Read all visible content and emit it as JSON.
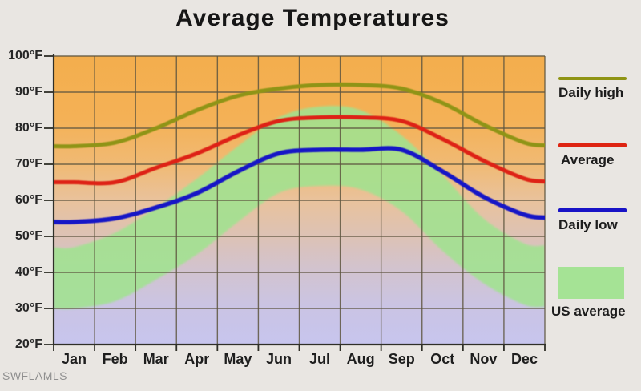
{
  "page": {
    "watermark": "SWFLAMLS"
  },
  "chart_data": {
    "type": "line",
    "title": "Average Temperatures",
    "categories": [
      "Jan",
      "Feb",
      "Mar",
      "Apr",
      "May",
      "Jun",
      "Jul",
      "Aug",
      "Sep",
      "Oct",
      "Nov",
      "Dec"
    ],
    "y_tick_labels": [
      "100°F",
      "90°F",
      "80°F",
      "70°F",
      "60°F",
      "50°F",
      "40°F",
      "30°F",
      "20°F"
    ],
    "y_tick_values": [
      100,
      90,
      80,
      70,
      60,
      50,
      40,
      30,
      20
    ],
    "ylim": [
      20,
      100
    ],
    "grid": true,
    "legend_position": "right",
    "series": [
      {
        "name": "Daily high",
        "color": "#8f9414",
        "values": [
          75,
          76,
          80,
          85,
          89,
          91,
          92,
          92,
          91,
          87,
          81,
          76
        ]
      },
      {
        "name": "Average",
        "color": "#de2412",
        "values": [
          65,
          65,
          69,
          73,
          78,
          82,
          83,
          83,
          82,
          77,
          71,
          66
        ]
      },
      {
        "name": "Daily low",
        "color": "#1813c6",
        "values": [
          54,
          55,
          58,
          62,
          68,
          73,
          74,
          74,
          74,
          68,
          61,
          56
        ]
      }
    ],
    "us_average_band": {
      "name": "US average",
      "color": "#a0e290",
      "high": [
        47,
        51,
        58,
        66,
        75,
        83,
        86,
        85,
        78,
        67,
        55,
        48
      ],
      "low": [
        30,
        32,
        38,
        45,
        54,
        62,
        64,
        63,
        57,
        46,
        37,
        31
      ]
    },
    "legend": [
      {
        "label": "Daily high",
        "swatch": "line",
        "color": "#8f9414"
      },
      {
        "label": "Average",
        "swatch": "line",
        "color": "#de2412"
      },
      {
        "label": "Daily low",
        "swatch": "line",
        "color": "#1813c6"
      },
      {
        "label": "US average",
        "swatch": "area",
        "color": "#a5e395"
      }
    ],
    "colors": {
      "plot_bg_top": "#f3ae4d",
      "plot_bg_orange": "#f4b156",
      "plot_bg_tan": "#e9c29c",
      "plot_bg_pink": "#d2c3cf",
      "plot_bg_lavender": "#c7c5ee",
      "gridline": "#5e5640",
      "axis": "#2f2f28",
      "page_bg": "#e9e6e2"
    }
  }
}
